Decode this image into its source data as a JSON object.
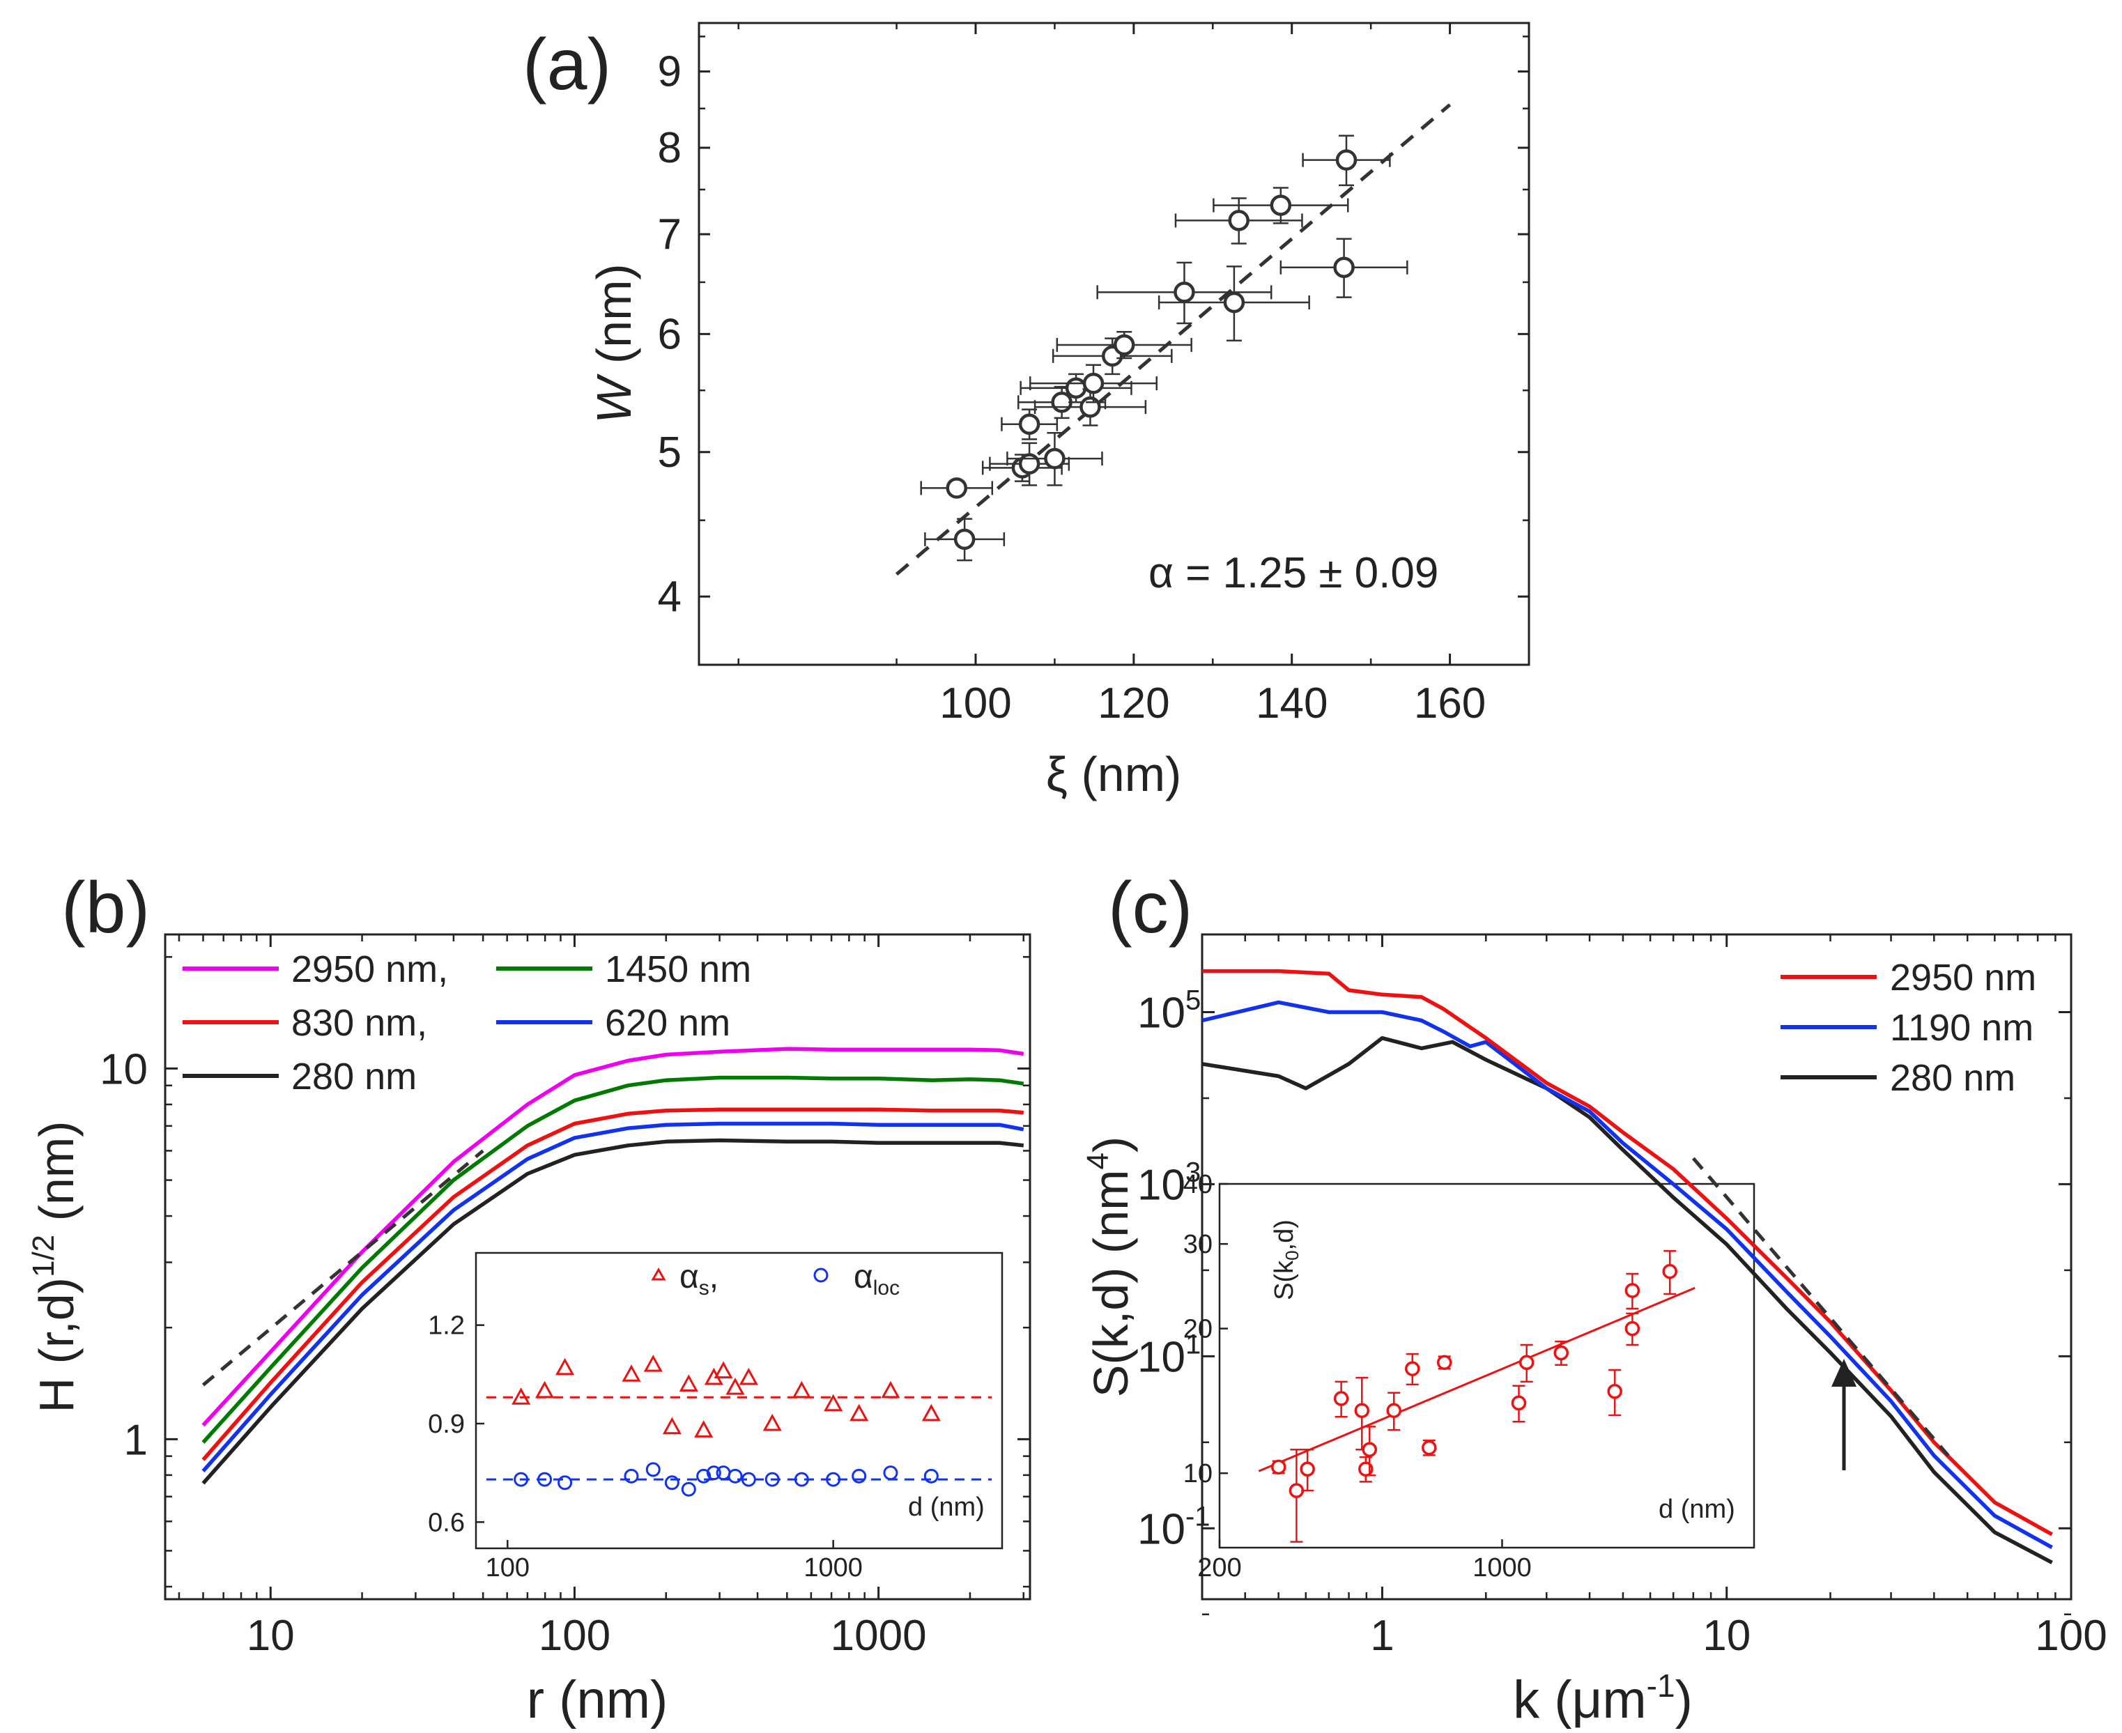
{
  "figure": {
    "panel_a": {
      "label": "(a)",
      "xlabel": "ξ (nm)",
      "ylabel_italic": "W",
      "ylabel_rest": " (nm)",
      "annotation": "α = 1.25 ± 0.09",
      "xticks": [
        "100",
        "120",
        "140",
        "160"
      ],
      "yticks": [
        "4",
        "5",
        "6",
        "7",
        "8",
        "9"
      ]
    },
    "panel_b": {
      "label": "(b)",
      "xlabel": "r (nm)",
      "ylabel_main": "H (r,d)",
      "ylabel_sup": "1/2",
      "ylabel_tail": " (nm)",
      "xticks": [
        "10",
        "100",
        "1000"
      ],
      "yticks": [
        "1",
        "10"
      ],
      "legend": [
        "2950 nm,",
        "1450 nm",
        "830 nm,",
        "620 nm",
        "280 nm"
      ],
      "inset": {
        "legend_s": "α",
        "legend_s_sub": "s",
        "legend_s_tail": ",",
        "legend_loc": "α",
        "legend_loc_sub": "loc",
        "xlabel": "d (nm)",
        "xticks": [
          "100",
          "1000"
        ],
        "yticks": [
          "0.6",
          "0.9",
          "1.2"
        ]
      }
    },
    "panel_c": {
      "label": "(c)",
      "xlabel_main": "k (μm",
      "xlabel_sup": "-1",
      "xlabel_tail": ")",
      "ylabel_main": "S(k,d) (nm",
      "ylabel_sup": "4",
      "ylabel_tail": ")",
      "xticks": [
        "1",
        "10",
        "100"
      ],
      "yticks": [
        {
          "base": "10",
          "exp": "5"
        },
        {
          "base": "10",
          "exp": "3"
        },
        {
          "base": "10",
          "exp": "1"
        },
        {
          "base": "10",
          "exp": "-1"
        }
      ],
      "legend": [
        "2950 nm",
        "1190 nm",
        "280 nm"
      ],
      "inset": {
        "ylabel": "S(k",
        "ylabel_sub": "0",
        "ylabel_tail": ",d)",
        "xlabel": "d (nm)",
        "xticks": [
          "200",
          "1000"
        ],
        "yticks": [
          "10",
          "20",
          "30",
          "40"
        ]
      }
    }
  },
  "chart_data": [
    {
      "type": "scatter",
      "title": "(a)",
      "xlabel": "ξ (nm)",
      "ylabel": "W (nm)",
      "xlim": [
        65,
        170
      ],
      "ylim": [
        3.6,
        9.7
      ],
      "yscale": "log",
      "points": [
        {
          "x": 97.6,
          "y": 4.73,
          "xerr": 4.5,
          "yerr": 0.05
        },
        {
          "x": 98.6,
          "y": 4.37,
          "xerr": 5.0,
          "yerr": 0.14
        },
        {
          "x": 105.9,
          "y": 4.88,
          "xerr": 5.0,
          "yerr": 0.1
        },
        {
          "x": 106.8,
          "y": 4.91,
          "xerr": 5.0,
          "yerr": 0.16
        },
        {
          "x": 110.0,
          "y": 4.95,
          "xerr": 6.0,
          "yerr": 0.2
        },
        {
          "x": 106.8,
          "y": 5.22,
          "xerr": 3.5,
          "yerr": 0.12
        },
        {
          "x": 110.9,
          "y": 5.4,
          "xerr": 5.5,
          "yerr": 0.13
        },
        {
          "x": 112.7,
          "y": 5.52,
          "xerr": 7.0,
          "yerr": 0.12
        },
        {
          "x": 114.5,
          "y": 5.36,
          "xerr": 7.0,
          "yerr": 0.15
        },
        {
          "x": 114.9,
          "y": 5.56,
          "xerr": 8.0,
          "yerr": 0.16
        },
        {
          "x": 117.3,
          "y": 5.8,
          "xerr": 7.5,
          "yerr": 0.16
        },
        {
          "x": 118.8,
          "y": 5.9,
          "xerr": 8.5,
          "yerr": 0.12
        },
        {
          "x": 126.4,
          "y": 6.4,
          "xerr": 11.0,
          "yerr": 0.3
        },
        {
          "x": 132.7,
          "y": 6.3,
          "xerr": 9.5,
          "yerr": 0.36
        },
        {
          "x": 133.3,
          "y": 7.15,
          "xerr": 8.0,
          "yerr": 0.25
        },
        {
          "x": 138.6,
          "y": 7.32,
          "xerr": 8.5,
          "yerr": 0.2
        },
        {
          "x": 146.6,
          "y": 6.65,
          "xerr": 8.0,
          "yerr": 0.3
        },
        {
          "x": 146.9,
          "y": 7.85,
          "xerr": 5.5,
          "yerr": 0.3
        }
      ],
      "fit": {
        "x": [
          90,
          160
        ],
        "y": [
          4.14,
          8.55
        ],
        "style": "dashed"
      },
      "annotation": "α = 1.25 ± 0.09"
    },
    {
      "type": "line",
      "title": "(b)",
      "xlabel": "r (nm)",
      "ylabel": "H (r,d)^1/2 (nm)",
      "xscale": "log",
      "yscale": "log",
      "xlim": [
        4.5,
        3150
      ],
      "ylim": [
        0.37,
        23
      ],
      "series": [
        {
          "name": "2950 nm",
          "color": "#ee00ee",
          "x": [
            6,
            10,
            20,
            40,
            70,
            100,
            150,
            200,
            300,
            500,
            700,
            1000,
            1500,
            2000,
            2500,
            3000
          ],
          "y": [
            1.09,
            1.72,
            3.2,
            5.6,
            8.0,
            9.6,
            10.5,
            10.9,
            11.1,
            11.3,
            11.25,
            11.25,
            11.25,
            11.25,
            11.2,
            10.95
          ]
        },
        {
          "name": "1450 nm",
          "color": "#007a00",
          "x": [
            6,
            10,
            20,
            40,
            70,
            100,
            150,
            200,
            300,
            500,
            700,
            1000,
            1500,
            2000,
            2500,
            3000
          ],
          "y": [
            0.98,
            1.56,
            2.9,
            5.0,
            7.0,
            8.2,
            9.0,
            9.3,
            9.45,
            9.45,
            9.4,
            9.4,
            9.3,
            9.35,
            9.3,
            9.1
          ]
        },
        {
          "name": "830 nm",
          "color": "#ee1111",
          "x": [
            6,
            10,
            20,
            40,
            70,
            100,
            150,
            200,
            300,
            500,
            700,
            1000,
            1500,
            2000,
            2500,
            3000
          ],
          "y": [
            0.88,
            1.42,
            2.65,
            4.5,
            6.2,
            7.1,
            7.55,
            7.7,
            7.75,
            7.75,
            7.75,
            7.75,
            7.7,
            7.7,
            7.7,
            7.6
          ]
        },
        {
          "name": "620 nm",
          "color": "#1133ee",
          "x": [
            6,
            10,
            20,
            40,
            70,
            100,
            150,
            200,
            300,
            500,
            700,
            1000,
            1500,
            2000,
            2500,
            3000
          ],
          "y": [
            0.82,
            1.32,
            2.45,
            4.15,
            5.7,
            6.5,
            6.9,
            7.05,
            7.1,
            7.1,
            7.1,
            7.05,
            7.05,
            7.05,
            7.05,
            6.85
          ]
        },
        {
          "name": "280 nm",
          "color": "#222222",
          "x": [
            6,
            10,
            20,
            40,
            70,
            100,
            150,
            200,
            300,
            500,
            700,
            1000,
            1500,
            2000,
            2500,
            3000
          ],
          "y": [
            0.76,
            1.22,
            2.25,
            3.8,
            5.2,
            5.85,
            6.2,
            6.35,
            6.4,
            6.35,
            6.35,
            6.3,
            6.3,
            6.3,
            6.3,
            6.2
          ]
        }
      ],
      "reference_line": {
        "x": [
          6,
          50
        ],
        "y": [
          1.4,
          6.0
        ],
        "style": "dashed"
      },
      "inset": {
        "xscale": "log",
        "xlim": [
          80,
          3300
        ],
        "ylim": [
          0.52,
          1.42
        ],
        "xlabel": "d (nm)",
        "series": [
          {
            "name": "α_s",
            "marker": "triangle",
            "color": "#e11",
            "x": [
              110,
              130,
              150,
              240,
              280,
              320,
              360,
              400,
              430,
              460,
              500,
              550,
              650,
              800,
              1000,
              1200,
              1500,
              2000
            ],
            "y": [
              0.98,
              1.0,
              1.07,
              1.05,
              1.08,
              0.89,
              1.02,
              0.88,
              1.04,
              1.06,
              1.01,
              1.04,
              0.9,
              1.0,
              0.96,
              0.93,
              1.0,
              0.93
            ],
            "fit": 0.98
          },
          {
            "name": "α_loc",
            "marker": "circle",
            "color": "#1133ee",
            "x": [
              110,
              130,
              150,
              240,
              280,
              320,
              360,
              400,
              430,
              460,
              500,
              550,
              650,
              800,
              1000,
              1200,
              1500,
              2000
            ],
            "y": [
              0.73,
              0.73,
              0.72,
              0.74,
              0.76,
              0.72,
              0.7,
              0.74,
              0.75,
              0.75,
              0.74,
              0.73,
              0.73,
              0.73,
              0.73,
              0.74,
              0.75,
              0.74
            ],
            "fit": 0.73
          }
        ]
      }
    },
    {
      "type": "line",
      "title": "(c)",
      "xlabel": "k (μm^-1)",
      "ylabel": "S(k,d) (nm^4)",
      "xscale": "log",
      "yscale": "log",
      "xlim": [
        0.3,
        100
      ],
      "ylim": [
        0.015,
        800000
      ],
      "series": [
        {
          "name": "2950 nm",
          "color": "#ee1111",
          "x": [
            0.3,
            0.5,
            0.7,
            0.8,
            1.0,
            1.3,
            1.5,
            2,
            3,
            4,
            5,
            7,
            10,
            15,
            20,
            30,
            40,
            60,
            88
          ],
          "y": [
            300000,
            300000,
            280000,
            180000,
            160000,
            150000,
            110000,
            50000,
            15000,
            8000,
            4000,
            1500,
            400,
            80,
            25,
            4,
            1,
            0.2,
            0.085
          ]
        },
        {
          "name": "1190 nm",
          "color": "#1133ee",
          "x": [
            0.3,
            0.5,
            0.7,
            1.0,
            1.3,
            1.5,
            1.8,
            2,
            3,
            4,
            5,
            7,
            10,
            15,
            20,
            30,
            40,
            60,
            88
          ],
          "y": [
            80000,
            130000,
            100000,
            100000,
            80000,
            60000,
            40000,
            45000,
            13000,
            7000,
            3000,
            1000,
            300,
            55,
            17,
            3,
            0.7,
            0.14,
            0.06
          ]
        },
        {
          "name": "280 nm",
          "color": "#222222",
          "x": [
            0.3,
            0.5,
            0.6,
            0.8,
            1.0,
            1.3,
            1.6,
            2,
            3,
            4,
            5,
            7,
            10,
            15,
            20,
            30,
            40,
            60,
            88
          ],
          "y": [
            25000,
            18000,
            13000,
            25000,
            50000,
            38000,
            45000,
            28000,
            13000,
            6000,
            2500,
            700,
            200,
            35,
            11,
            2,
            0.45,
            0.09,
            0.04
          ]
        }
      ],
      "reference_line": {
        "x": [
          8,
          44
        ],
        "y": [
          2000,
          0.7
        ],
        "style": "dashed"
      },
      "arrow_at_k": 20,
      "inset": {
        "xscale": "log",
        "yscale": "log",
        "xlim": [
          200,
          4200
        ],
        "ylim": [
          7,
          40
        ],
        "xlabel": "d (nm)",
        "ylabel": "S(k0,d)",
        "points": [
          {
            "x": 280,
            "y": 10.3,
            "err": 0.3
          },
          {
            "x": 310,
            "y": 9.2,
            "err": 2.0
          },
          {
            "x": 330,
            "y": 10.2,
            "err": 1.0
          },
          {
            "x": 400,
            "y": 14.3,
            "err": 1.2
          },
          {
            "x": 450,
            "y": 13.5,
            "err": 2.3
          },
          {
            "x": 460,
            "y": 10.2,
            "err": 0.6
          },
          {
            "x": 470,
            "y": 11.2,
            "err": 1.3
          },
          {
            "x": 540,
            "y": 13.5,
            "err": 1.2
          },
          {
            "x": 600,
            "y": 16.5,
            "err": 1.2
          },
          {
            "x": 660,
            "y": 11.3,
            "err": 0.4
          },
          {
            "x": 720,
            "y": 17.0,
            "err": 0.5
          },
          {
            "x": 1100,
            "y": 14.0,
            "err": 1.2
          },
          {
            "x": 1150,
            "y": 17.0,
            "err": 1.5
          },
          {
            "x": 1400,
            "y": 17.8,
            "err": 1.0
          },
          {
            "x": 1900,
            "y": 14.8,
            "err": 1.6
          },
          {
            "x": 2100,
            "y": 20.0,
            "err": 1.5
          },
          {
            "x": 2100,
            "y": 24.0,
            "err": 2.0
          },
          {
            "x": 2600,
            "y": 26.3,
            "err": 2.7
          }
        ],
        "fit": {
          "x": [
            250,
            3000
          ],
          "y": [
            10.1,
            24.3
          ]
        }
      }
    }
  ]
}
